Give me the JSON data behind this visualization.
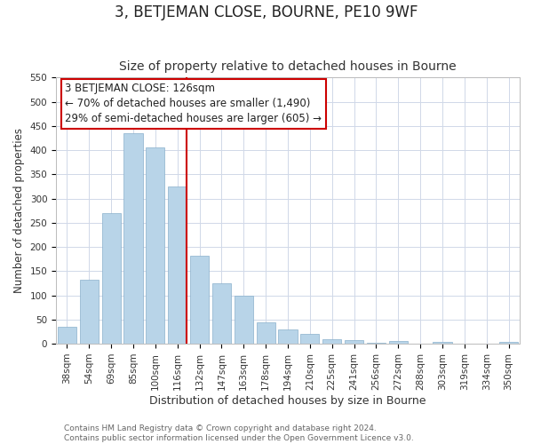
{
  "title": "3, BETJEMAN CLOSE, BOURNE, PE10 9WF",
  "subtitle": "Size of property relative to detached houses in Bourne",
  "xlabel": "Distribution of detached houses by size in Bourne",
  "ylabel": "Number of detached properties",
  "bar_labels": [
    "38sqm",
    "54sqm",
    "69sqm",
    "85sqm",
    "100sqm",
    "116sqm",
    "132sqm",
    "147sqm",
    "163sqm",
    "178sqm",
    "194sqm",
    "210sqm",
    "225sqm",
    "241sqm",
    "256sqm",
    "272sqm",
    "288sqm",
    "303sqm",
    "319sqm",
    "334sqm",
    "350sqm"
  ],
  "bar_values": [
    35,
    133,
    270,
    435,
    405,
    325,
    182,
    125,
    100,
    45,
    30,
    20,
    9,
    8,
    2,
    5,
    1,
    3,
    1,
    1,
    4
  ],
  "bar_color": "#b8d4e8",
  "highlight_line_color": "#cc0000",
  "highlight_line_bar_index": 5,
  "ylim": [
    0,
    550
  ],
  "yticks": [
    0,
    50,
    100,
    150,
    200,
    250,
    300,
    350,
    400,
    450,
    500,
    550
  ],
  "annotation_title": "3 BETJEMAN CLOSE: 126sqm",
  "annotation_line1": "← 70% of detached houses are smaller (1,490)",
  "annotation_line2": "29% of semi-detached houses are larger (605) →",
  "footer_line1": "Contains HM Land Registry data © Crown copyright and database right 2024.",
  "footer_line2": "Contains public sector information licensed under the Open Government Licence v3.0.",
  "background_color": "#ffffff",
  "plot_bg_color": "#ffffff",
  "grid_color": "#d0d8e8",
  "title_fontsize": 12,
  "subtitle_fontsize": 10,
  "xlabel_fontsize": 9,
  "ylabel_fontsize": 8.5,
  "tick_fontsize": 7.5,
  "footer_fontsize": 6.5,
  "ann_fontsize": 8.5
}
